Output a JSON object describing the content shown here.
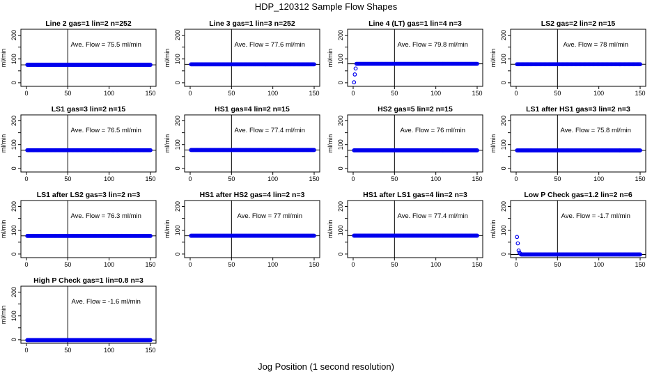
{
  "figure": {
    "title": "HDP_120312  Sample Flow Shapes",
    "xlabel": "Jog Position (1 second resolution)",
    "ylabel": "ml/min",
    "point_color": "#0000ee",
    "line_color": "#000000"
  },
  "chart_data": [
    {
      "type": "scatter",
      "title": "Line 2 gas=1 lin=2 n=252",
      "annotation": "Ave. Flow =  75.5  ml/min",
      "x_range": [
        1,
        150
      ],
      "ylevel": 75.5,
      "xlim": [
        0,
        150
      ],
      "ylim": [
        -15,
        225
      ],
      "xticks": [
        0,
        50,
        100,
        150
      ],
      "yticks": [
        0,
        100,
        200
      ],
      "yticks_minor": [
        50,
        150
      ],
      "vline_x": 50,
      "hline_y": 75.5
    },
    {
      "type": "scatter",
      "title": "Line 3 gas=1 lin=3 n=252",
      "annotation": "Ave. Flow =  77.6  ml/min",
      "x_range": [
        1,
        150
      ],
      "ylevel": 77.6,
      "xlim": [
        0,
        150
      ],
      "ylim": [
        -15,
        225
      ],
      "xticks": [
        0,
        50,
        100,
        150
      ],
      "yticks": [
        0,
        100,
        200
      ],
      "yticks_minor": [
        50,
        150
      ],
      "vline_x": 50,
      "hline_y": 77.6
    },
    {
      "type": "scatter",
      "title": "Line 4 (LT) gas=1 lin=4 n=3",
      "annotation": "Ave. Flow =  79.8  ml/min",
      "x_range": [
        4,
        150
      ],
      "ylevel": 79.8,
      "extra_points": [
        {
          "x": 1,
          "y": 2
        },
        {
          "x": 2,
          "y": 35
        },
        {
          "x": 3,
          "y": 60
        }
      ],
      "xlim": [
        0,
        150
      ],
      "ylim": [
        -15,
        225
      ],
      "xticks": [
        0,
        50,
        100,
        150
      ],
      "yticks": [
        0,
        100,
        200
      ],
      "yticks_minor": [
        50,
        150
      ],
      "vline_x": 50,
      "hline_y": 79.8
    },
    {
      "type": "scatter",
      "title": "LS2 gas=2 lin=2 n=15",
      "annotation": "Ave. Flow =  78  ml/min",
      "x_range": [
        1,
        150
      ],
      "ylevel": 78,
      "xlim": [
        0,
        150
      ],
      "ylim": [
        -15,
        225
      ],
      "xticks": [
        0,
        50,
        100,
        150
      ],
      "yticks": [
        0,
        100,
        200
      ],
      "yticks_minor": [
        50,
        150
      ],
      "vline_x": 50,
      "hline_y": 78
    },
    {
      "type": "scatter",
      "title": "LS1 gas=3 lin=2 n=15",
      "annotation": "Ave. Flow =  76.5  ml/min",
      "x_range": [
        1,
        150
      ],
      "ylevel": 76.5,
      "xlim": [
        0,
        150
      ],
      "ylim": [
        -15,
        225
      ],
      "xticks": [
        0,
        50,
        100,
        150
      ],
      "yticks": [
        0,
        100,
        200
      ],
      "yticks_minor": [
        50,
        150
      ],
      "vline_x": 50,
      "hline_y": 76.5
    },
    {
      "type": "scatter",
      "title": "HS1 gas=4 lin=2 n=15",
      "annotation": "Ave. Flow =  77.4  ml/min",
      "x_range": [
        1,
        150
      ],
      "ylevel": 77.4,
      "xlim": [
        0,
        150
      ],
      "ylim": [
        -15,
        225
      ],
      "xticks": [
        0,
        50,
        100,
        150
      ],
      "yticks": [
        0,
        100,
        200
      ],
      "yticks_minor": [
        50,
        150
      ],
      "vline_x": 50,
      "hline_y": 77.4
    },
    {
      "type": "scatter",
      "title": "HS2 gas=5 lin=2 n=15",
      "annotation": "Ave. Flow =  76  ml/min",
      "x_range": [
        1,
        150
      ],
      "ylevel": 76,
      "xlim": [
        0,
        150
      ],
      "ylim": [
        -15,
        225
      ],
      "xticks": [
        0,
        50,
        100,
        150
      ],
      "yticks": [
        0,
        100,
        200
      ],
      "yticks_minor": [
        50,
        150
      ],
      "vline_x": 50,
      "hline_y": 76
    },
    {
      "type": "scatter",
      "title": "LS1 after HS1 gas=3 lin=2 n=3",
      "annotation": "Ave. Flow =  75.8  ml/min",
      "x_range": [
        1,
        150
      ],
      "ylevel": 75.8,
      "xlim": [
        0,
        150
      ],
      "ylim": [
        -15,
        225
      ],
      "xticks": [
        0,
        50,
        100,
        150
      ],
      "yticks": [
        0,
        100,
        200
      ],
      "yticks_minor": [
        50,
        150
      ],
      "vline_x": 50,
      "hline_y": 75.8
    },
    {
      "type": "scatter",
      "title": "LS1 after LS2 gas=3 lin=2 n=3",
      "annotation": "Ave. Flow =  76.3  ml/min",
      "x_range": [
        1,
        150
      ],
      "ylevel": 76.3,
      "xlim": [
        0,
        150
      ],
      "ylim": [
        -15,
        225
      ],
      "xticks": [
        0,
        50,
        100,
        150
      ],
      "yticks": [
        0,
        100,
        200
      ],
      "yticks_minor": [
        50,
        150
      ],
      "vline_x": 50,
      "hline_y": 76.3
    },
    {
      "type": "scatter",
      "title": "HS1 after HS2 gas=4 lin=2 n=3",
      "annotation": "Ave. Flow =  77  ml/min",
      "x_range": [
        1,
        150
      ],
      "ylevel": 77,
      "xlim": [
        0,
        150
      ],
      "ylim": [
        -15,
        225
      ],
      "xticks": [
        0,
        50,
        100,
        150
      ],
      "yticks": [
        0,
        100,
        200
      ],
      "yticks_minor": [
        50,
        150
      ],
      "vline_x": 50,
      "hline_y": 77
    },
    {
      "type": "scatter",
      "title": "HS1 after LS1 gas=4 lin=2 n=3",
      "annotation": "Ave. Flow =  77.4  ml/min",
      "x_range": [
        1,
        150
      ],
      "ylevel": 77.4,
      "xlim": [
        0,
        150
      ],
      "ylim": [
        -15,
        225
      ],
      "xticks": [
        0,
        50,
        100,
        150
      ],
      "yticks": [
        0,
        100,
        200
      ],
      "yticks_minor": [
        50,
        150
      ],
      "vline_x": 50,
      "hline_y": 77.4
    },
    {
      "type": "scatter",
      "title": "Low P Check gas=1.2 lin=2 n=6",
      "annotation": "Ave. Flow =  -1.7  ml/min",
      "x_range": [
        6,
        150
      ],
      "ylevel": -1.7,
      "extra_points": [
        {
          "x": 1,
          "y": 72
        },
        {
          "x": 2,
          "y": 45
        },
        {
          "x": 3,
          "y": 15
        },
        {
          "x": 4,
          "y": 6
        },
        {
          "x": 5,
          "y": 2
        }
      ],
      "xlim": [
        0,
        150
      ],
      "ylim": [
        -15,
        225
      ],
      "xticks": [
        0,
        50,
        100,
        150
      ],
      "yticks": [
        0,
        100,
        200
      ],
      "yticks_minor": [
        50,
        150
      ],
      "vline_x": 50,
      "hline_y": -1.7
    },
    {
      "type": "scatter",
      "title": "High P Check gas=1 lin=0.8 n=3",
      "annotation": "Ave. Flow =  -1.6  ml/min",
      "x_range": [
        1,
        150
      ],
      "ylevel": -1.6,
      "xlim": [
        0,
        150
      ],
      "ylim": [
        -15,
        225
      ],
      "xticks": [
        0,
        50,
        100,
        150
      ],
      "yticks": [
        0,
        100,
        200
      ],
      "yticks_minor": [
        50,
        150
      ],
      "vline_x": 50,
      "hline_y": -1.6
    }
  ]
}
